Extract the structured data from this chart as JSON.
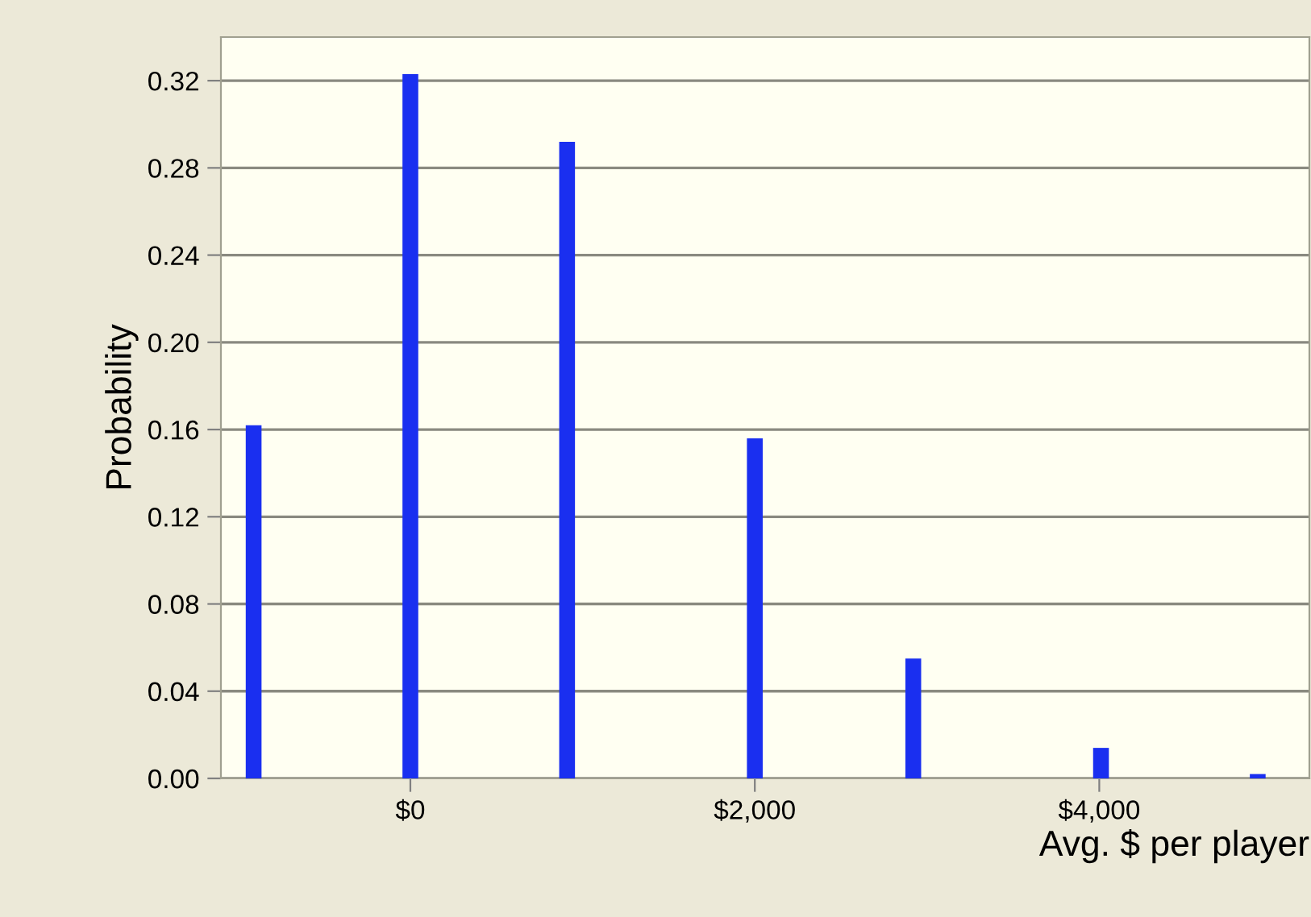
{
  "chart_data": {
    "type": "bar",
    "xlabel": "Avg. $ per player",
    "ylabel": "Probability",
    "x": [
      -910,
      0,
      910,
      2000,
      2920,
      4010,
      4920
    ],
    "values": [
      0.162,
      0.323,
      0.292,
      0.156,
      0.055,
      0.014,
      0.002
    ],
    "color": "#1a2ff0",
    "xlim": [
      -1100,
      5220
    ],
    "xticks": [
      {
        "value": 0,
        "label": "$0"
      },
      {
        "value": 2000,
        "label": "$2,000"
      },
      {
        "value": 4000,
        "label": "$4,000"
      }
    ],
    "ylim": [
      0,
      0.34
    ],
    "yticks": [
      {
        "value": 0,
        "label": "0.00"
      },
      {
        "value": 0.04,
        "label": "0.04"
      },
      {
        "value": 0.08,
        "label": "0.08"
      },
      {
        "value": 0.12,
        "label": "0.12"
      },
      {
        "value": 0.16,
        "label": "0.16"
      },
      {
        "value": 0.2,
        "label": "0.20"
      },
      {
        "value": 0.24,
        "label": "0.24"
      },
      {
        "value": 0.28,
        "label": "0.28"
      },
      {
        "value": 0.32,
        "label": "0.32"
      }
    ],
    "grid": "y"
  }
}
